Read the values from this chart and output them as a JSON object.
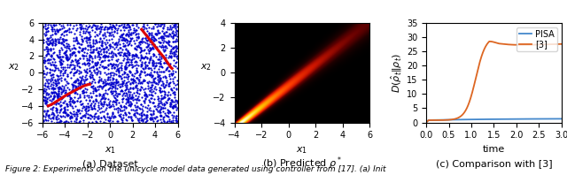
{
  "subplot1": {
    "xlim": [
      -6,
      6
    ],
    "ylim": [
      -6,
      6
    ],
    "xlabel": "$x_1$",
    "ylabel": "$x_2$",
    "caption": "(a) Dataset",
    "scatter_color": "#0000cc",
    "scatter_size": 2.5,
    "n_points": 2500,
    "curve1_x": [
      -5.5,
      -4.8,
      -4.0,
      -3.2,
      -2.5,
      -1.8
    ],
    "curve1_y": [
      -4.0,
      -3.5,
      -2.8,
      -2.2,
      -1.7,
      -1.4
    ],
    "curve2_x": [
      2.8,
      3.5,
      4.2,
      4.8,
      5.2,
      5.5
    ],
    "curve2_y": [
      5.2,
      4.0,
      2.8,
      1.8,
      1.0,
      0.5
    ],
    "curve_color": "#dd0000",
    "curve_lw": 2.2
  },
  "subplot2": {
    "xlim": [
      -4,
      6
    ],
    "ylim": [
      -4,
      4
    ],
    "xlabel": "$x_1$",
    "ylabel": "$x_2$",
    "caption": "(b) Predicted $\\rho^*$",
    "density_slope": 0.85,
    "density_intercept": -1.0,
    "sigma_base": 0.25,
    "sigma_scale": 0.55
  },
  "subplot3": {
    "xlim": [
      0,
      3
    ],
    "ylim": [
      0,
      35
    ],
    "xlabel": "time",
    "ylabel": "$D(\\hat{\\rho}_t \\| \\rho_t)$",
    "caption": "(c) Comparison with [3]",
    "pisa_color": "#4488cc",
    "ref_color": "#dd6622",
    "legend_labels": [
      "PISA",
      "[3]"
    ],
    "yticks": [
      0,
      5,
      10,
      15,
      20,
      25,
      30,
      35
    ],
    "xticks": [
      0,
      0.5,
      1.0,
      1.5,
      2.0,
      2.5,
      3.0
    ]
  },
  "caption_text": "Figure 2: Experiments on the unicycle model data generated using controller from [17]. (a) Init",
  "figsize": [
    6.4,
    1.98
  ],
  "dpi": 100
}
